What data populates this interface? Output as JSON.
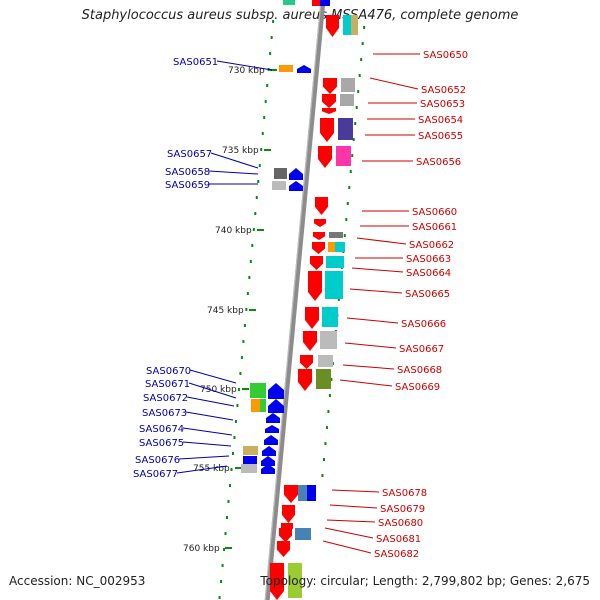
{
  "title": "Staphylococcus aureus subsp. aureus MSSA476, complete genome",
  "accession_text": "Accession: NC_002953",
  "topology_text": "Topology: circular; Length: 2,799,802 bp; Genes: 2,675",
  "colors": {
    "forward_label": "#cc0000",
    "reverse_label": "#0000aa",
    "forward_gene": "#ff0000",
    "reverse_gene": "#0000ee",
    "backbone": "#8c8c8c",
    "tick": "#118811"
  },
  "kbp_labels": [
    "730 kbp",
    "735 kbp",
    "740 kbp",
    "745 kbp",
    "750 kbp",
    "755 kbp",
    "760 kbp"
  ],
  "left_labels": [
    "SAS0651",
    "SAS0657",
    "SAS0658",
    "SAS0659",
    "SAS0670",
    "SAS0671",
    "SAS0672",
    "SAS0673",
    "SAS0674",
    "SAS0675",
    "SAS0676",
    "SAS0677"
  ],
  "right_labels": [
    "SAS0650",
    "SAS0652",
    "SAS0653",
    "SAS0654",
    "SAS0655",
    "SAS0656",
    "SAS0660",
    "SAS0661",
    "SAS0662",
    "SAS0663",
    "SAS0664",
    "SAS0665",
    "SAS0666",
    "SAS0667",
    "SAS0668",
    "SAS0669",
    "SAS0678",
    "SAS0679",
    "SAS0680",
    "SAS0681",
    "SAS0682"
  ]
}
